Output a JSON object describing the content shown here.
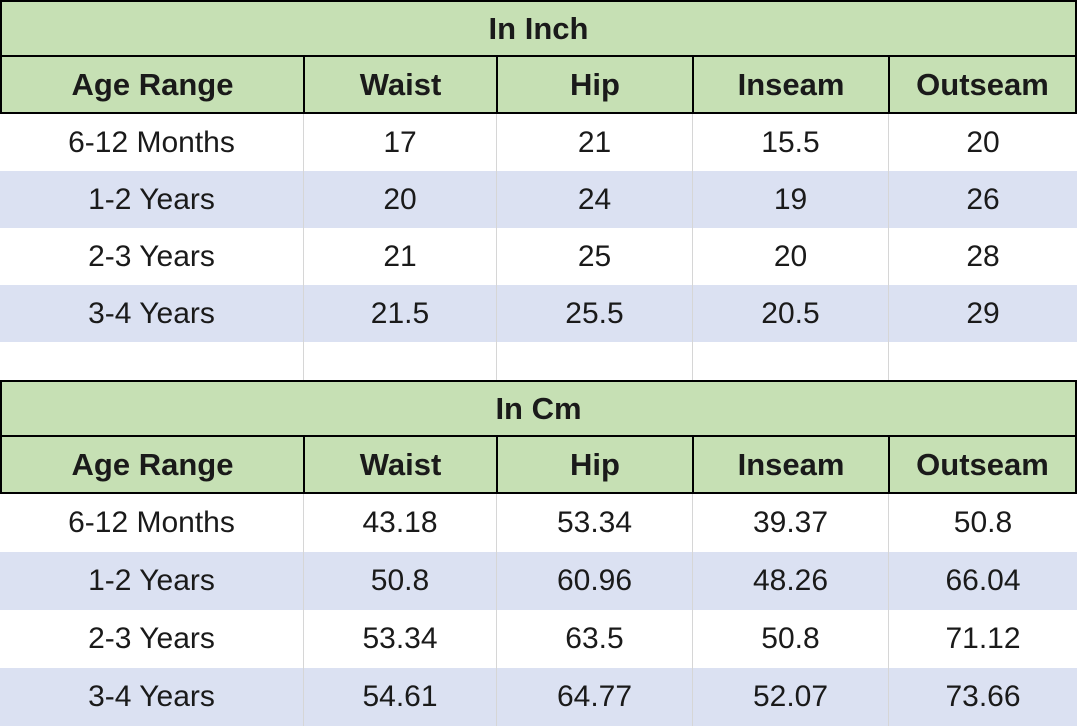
{
  "colors": {
    "header_green": "#c6e0b4",
    "row_alt_lavender": "#dbe1f2",
    "row_white": "#ffffff",
    "border_black": "#000000",
    "grid_light": "#d6d6d6",
    "text": "#1a1a1a"
  },
  "chart_data": [
    {
      "type": "table",
      "title": "In Inch",
      "columns": [
        "Age Range",
        "Waist",
        "Hip",
        "Inseam",
        "Outseam"
      ],
      "rows": [
        [
          "6-12 Months",
          "17",
          "21",
          "15.5",
          "20"
        ],
        [
          "1-2 Years",
          "20",
          "24",
          "19",
          "26"
        ],
        [
          "2-3 Years",
          "21",
          "25",
          "20",
          "28"
        ],
        [
          "3-4 Years",
          "21.5",
          "25.5",
          "20.5",
          "29"
        ]
      ]
    },
    {
      "type": "table",
      "title": "In Cm",
      "columns": [
        "Age Range",
        "Waist",
        "Hip",
        "Inseam",
        "Outseam"
      ],
      "rows": [
        [
          "6-12 Months",
          "43.18",
          "53.34",
          "39.37",
          "50.8"
        ],
        [
          "1-2 Years",
          "50.8",
          "60.96",
          "48.26",
          "66.04"
        ],
        [
          "2-3 Years",
          "53.34",
          "63.5",
          "50.8",
          "71.12"
        ],
        [
          "3-4 Years",
          "54.61",
          "64.77",
          "52.07",
          "73.66"
        ]
      ]
    }
  ]
}
